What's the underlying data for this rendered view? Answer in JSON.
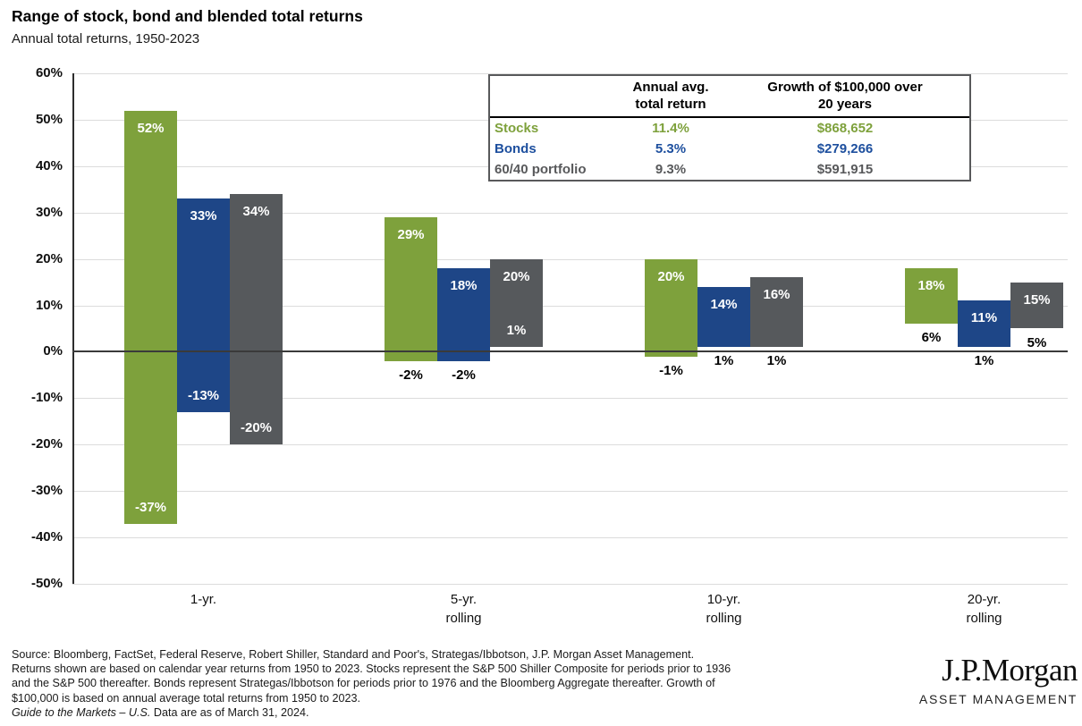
{
  "title": "Range of stock, bond and blended total returns",
  "subtitle": "Annual total returns, 1950-2023",
  "chart_data": {
    "type": "bar",
    "subtype": "floating-range-bars",
    "title": "Range of stock, bond and blended total returns",
    "subtitle": "Annual total returns, 1950-2023",
    "categories": [
      "1-yr.",
      "5-yr.\nrolling",
      "10-yr.\nrolling",
      "20-yr.\nrolling"
    ],
    "ylim": [
      -50,
      60
    ],
    "ytick_step": 10,
    "ytick_suffix": "%",
    "grid": true,
    "legend_position": "top-right-table",
    "series": [
      {
        "name": "Stocks",
        "color": "#7ea13c",
        "ranges": [
          [
            -37,
            52
          ],
          [
            -2,
            29
          ],
          [
            -1,
            20
          ],
          [
            6,
            18
          ]
        ],
        "min_label_inside": [
          true,
          false,
          false,
          false
        ]
      },
      {
        "name": "Bonds",
        "color": "#1e4687",
        "ranges": [
          [
            -13,
            33
          ],
          [
            -2,
            18
          ],
          [
            1,
            14
          ],
          [
            1,
            11
          ]
        ],
        "min_label_inside": [
          true,
          false,
          false,
          false
        ]
      },
      {
        "name": "60/40 portfolio",
        "color": "#56595c",
        "ranges": [
          [
            -20,
            34
          ],
          [
            1,
            20
          ],
          [
            1,
            16
          ],
          [
            5,
            15
          ]
        ],
        "min_label_inside": [
          true,
          true,
          false,
          false
        ]
      }
    ]
  },
  "legend_table": {
    "header": {
      "col1": "",
      "col2_line1": "Annual avg.",
      "col2_line2": "total return",
      "col3_line1": "Growth of $100,000 over",
      "col3_line2": "20 years"
    },
    "rows": [
      {
        "label": "Stocks",
        "avg_return": "11.4%",
        "growth": "$868,652",
        "color": "#7ea13c"
      },
      {
        "label": "Bonds",
        "avg_return": "5.3%",
        "growth": "$279,266",
        "color": "#1d4f9e"
      },
      {
        "label": "60/40 portfolio",
        "avg_return": "9.3%",
        "growth": "$591,915",
        "color": "#58595b"
      }
    ]
  },
  "footer": {
    "lines": [
      "Source: Bloomberg, FactSet, Federal Reserve, Robert Shiller, Standard and Poor's, Strategas/Ibbotson, J.P. Morgan Asset Management.",
      "Returns shown are based on calendar year returns from 1950 to 2023. Stocks represent the S&P 500 Shiller Composite for periods prior to 1936",
      "and the S&P 500 thereafter. Bonds represent Strategas/Ibbotson for periods prior to 1976 and the Bloomberg Aggregate thereafter. Growth of",
      "$100,000 is based on annual average total returns from 1950 to 2023."
    ],
    "last_line_italic": "Guide to the Markets – U.S.",
    "last_line_regular": " Data are as of March 31, 2024."
  },
  "logo": {
    "brand": "J.P.Morgan",
    "division": "ASSET MANAGEMENT"
  }
}
